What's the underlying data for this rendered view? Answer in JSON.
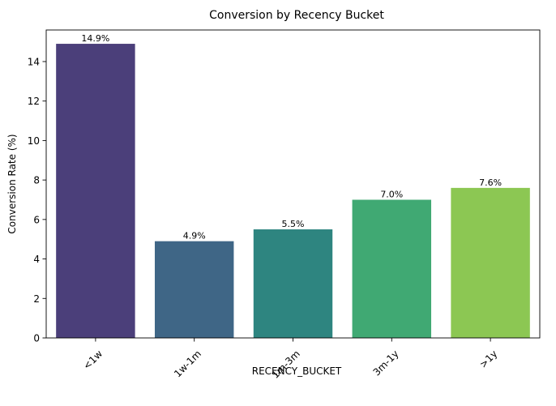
{
  "chart_data": {
    "type": "bar",
    "title": "Conversion by Recency Bucket",
    "xlabel": "RECENCY_BUCKET",
    "ylabel": "Conversion Rate (%)",
    "categories": [
      "<1w",
      "1w-1m",
      "1m-3m",
      "3m-1y",
      ">1y"
    ],
    "values": [
      14.9,
      4.9,
      5.5,
      7.0,
      7.6
    ],
    "data_labels": [
      "14.9%",
      "4.9%",
      "5.5%",
      "7.0%",
      "7.6%"
    ],
    "ylim": [
      0,
      15.6
    ],
    "yticks": [
      0,
      2,
      4,
      6,
      8,
      10,
      12,
      14
    ],
    "colors": [
      "#4b3f7a",
      "#3f6686",
      "#2e8580",
      "#40a973",
      "#8cc753"
    ],
    "grid": false,
    "legend": "none"
  }
}
